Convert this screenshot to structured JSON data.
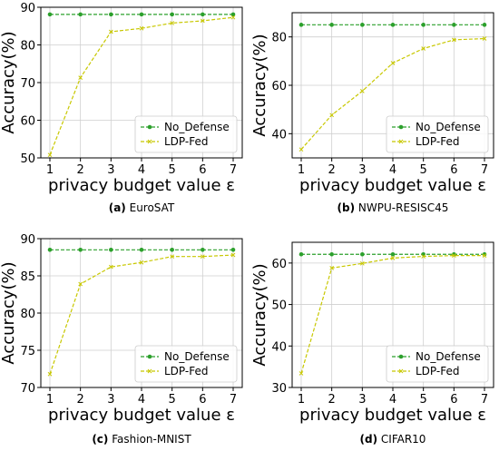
{
  "chart_data": [
    {
      "type": "line",
      "caption_letter": "(a)",
      "caption": "EuroSAT",
      "xlabel": "privacy budget value ε",
      "ylabel": "Accuracy(%)",
      "x": [
        1,
        2,
        3,
        4,
        5,
        6,
        7
      ],
      "xlim": [
        1,
        7
      ],
      "ylim": [
        50,
        90
      ],
      "yticks": [
        50,
        60,
        70,
        80,
        90
      ],
      "grid": true,
      "legend": "lower-right",
      "series": [
        {
          "name": "No_Defense",
          "values": [
            88.1,
            88.1,
            88.1,
            88.1,
            88.1,
            88.1,
            88.1
          ],
          "color": "#2ca02c",
          "marker": "circle"
        },
        {
          "name": "LDP-Fed",
          "values": [
            50.8,
            71.3,
            83.5,
            84.4,
            85.8,
            86.4,
            87.3
          ],
          "color": "#c8c800",
          "marker": "x"
        }
      ]
    },
    {
      "type": "line",
      "caption_letter": "(b)",
      "caption": "NWPU-RESISC45",
      "xlabel": "privacy budget value ε",
      "ylabel": "Accuracy(%)",
      "x": [
        1,
        2,
        3,
        4,
        5,
        6,
        7
      ],
      "xlim": [
        1,
        7
      ],
      "ylim": [
        30,
        90
      ],
      "yticks": [
        40,
        60,
        80
      ],
      "grid": true,
      "legend": "lower-right",
      "series": [
        {
          "name": "No_Defense",
          "values": [
            85.0,
            85.0,
            85.0,
            85.0,
            85.0,
            85.0,
            85.0
          ],
          "color": "#2ca02c",
          "marker": "circle"
        },
        {
          "name": "LDP-Fed",
          "values": [
            33.5,
            47.7,
            57.6,
            69.2,
            75.2,
            78.8,
            79.3
          ],
          "color": "#c8c800",
          "marker": "x"
        }
      ]
    },
    {
      "type": "line",
      "caption_letter": "(c)",
      "caption": "Fashion-MNIST",
      "xlabel": "privacy budget value ε",
      "ylabel": "Accuracy(%)",
      "x": [
        1,
        2,
        3,
        4,
        5,
        6,
        7
      ],
      "xlim": [
        1,
        7
      ],
      "ylim": [
        70,
        90
      ],
      "yticks": [
        70,
        75,
        80,
        85,
        90
      ],
      "grid": true,
      "legend": "lower-right",
      "series": [
        {
          "name": "No_Defense",
          "values": [
            88.5,
            88.5,
            88.5,
            88.5,
            88.5,
            88.5,
            88.5
          ],
          "color": "#2ca02c",
          "marker": "circle"
        },
        {
          "name": "LDP-Fed",
          "values": [
            71.8,
            83.9,
            86.2,
            86.8,
            87.6,
            87.6,
            87.8
          ],
          "color": "#c8c800",
          "marker": "x"
        }
      ]
    },
    {
      "type": "line",
      "caption_letter": "(d)",
      "caption": "CIFAR10",
      "xlabel": "privacy budget value ε",
      "ylabel": "Accuracy(%)",
      "x": [
        1,
        2,
        3,
        4,
        5,
        6,
        7
      ],
      "xlim": [
        1,
        7
      ],
      "ylim": [
        30,
        65
      ],
      "yticks": [
        30,
        40,
        50,
        60
      ],
      "grid": true,
      "legend": "lower-right",
      "series": [
        {
          "name": "No_Defense",
          "values": [
            62.1,
            62.1,
            62.1,
            62.1,
            62.1,
            62.1,
            62.1
          ],
          "color": "#2ca02c",
          "marker": "circle"
        },
        {
          "name": "LDP-Fed",
          "values": [
            33.4,
            58.8,
            59.9,
            61.2,
            61.6,
            61.8,
            61.8
          ],
          "color": "#c8c800",
          "marker": "x"
        }
      ]
    }
  ]
}
